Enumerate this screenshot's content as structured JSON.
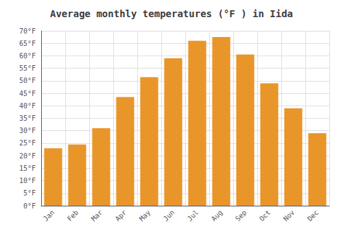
{
  "chart_data": {
    "type": "bar",
    "title": "Average monthly temperatures (°F ) in Iida",
    "categories": [
      "Jan",
      "Feb",
      "Mar",
      "Apr",
      "May",
      "Jun",
      "Jul",
      "Aug",
      "Sep",
      "Oct",
      "Nov",
      "Dec"
    ],
    "values": [
      23,
      24.5,
      31,
      43.5,
      51.5,
      59,
      66,
      67.5,
      60.5,
      49,
      39,
      29
    ],
    "color": "#E8952A",
    "ylim": [
      0,
      70
    ],
    "yticks": [
      {
        "value": 0,
        "label": "0°F"
      },
      {
        "value": 5,
        "label": "5°F"
      },
      {
        "value": 10,
        "label": "10°F"
      },
      {
        "value": 15,
        "label": "15°F"
      },
      {
        "value": 20,
        "label": "20°F"
      },
      {
        "value": 25,
        "label": "25°F"
      },
      {
        "value": 30,
        "label": "30°F"
      },
      {
        "value": 35,
        "label": "35°F"
      },
      {
        "value": 40,
        "label": "40°F"
      },
      {
        "value": 45,
        "label": "45°F"
      },
      {
        "value": 50,
        "label": "50°F"
      },
      {
        "value": 55,
        "label": "55°F"
      },
      {
        "value": 60,
        "label": "60°F"
      },
      {
        "value": 65,
        "label": "65°F"
      },
      {
        "value": 70,
        "label": "70°F"
      }
    ],
    "grid": true
  }
}
